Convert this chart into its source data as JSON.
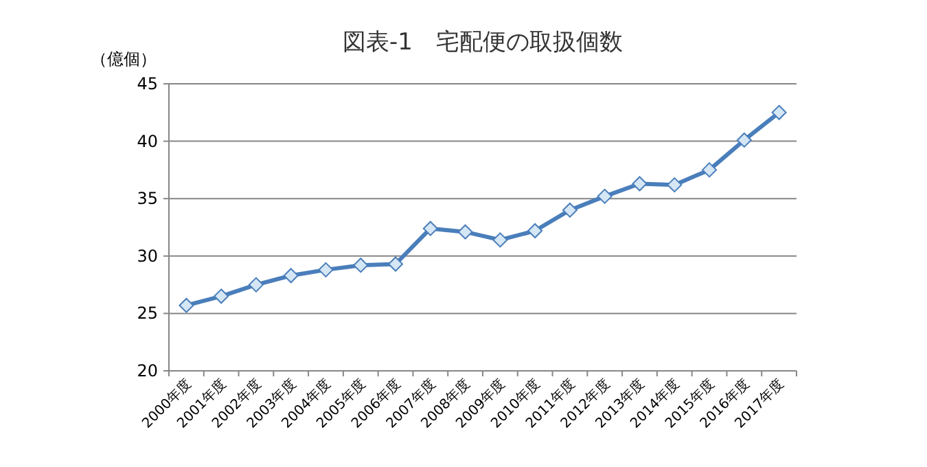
{
  "chart_data": {
    "type": "line",
    "title": "図表-1　宅配便の取扱個数",
    "ylabel": "（億個）",
    "categories": [
      "2000年度",
      "2001年度",
      "2002年度",
      "2003年度",
      "2004年度",
      "2005年度",
      "2006年度",
      "2007年度",
      "2008年度",
      "2009年度",
      "2010年度",
      "2011年度",
      "2012年度",
      "2013年度",
      "2014年度",
      "2015年度",
      "2016年度",
      "2017年度"
    ],
    "series": [
      {
        "color": "#4a7ebb",
        "values": [
          25.7,
          26.5,
          27.5,
          28.3,
          28.8,
          29.2,
          29.3,
          32.4,
          32.1,
          31.4,
          32.2,
          34.0,
          35.2,
          36.3,
          36.2,
          37.5,
          40.1,
          42.5
        ]
      }
    ],
    "ylim": [
      20,
      45
    ],
    "yticks": [
      20,
      25,
      30,
      35,
      40,
      45
    ],
    "grid": "y",
    "marker": "diamond"
  }
}
